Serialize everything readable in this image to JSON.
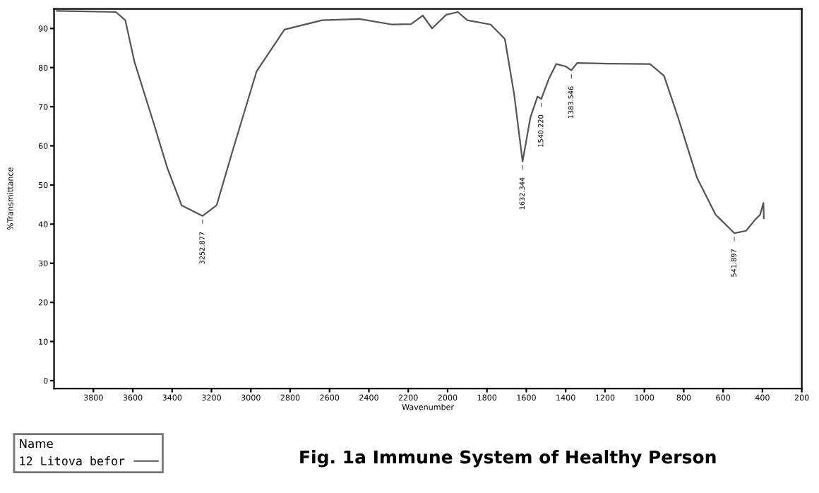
{
  "chart_data": {
    "type": "line",
    "title": "Fig. 1a Immune System of Healthy Person",
    "xlabel": "Wavenumber",
    "ylabel": "%Transmittance",
    "legend_title": "Name",
    "legend": "bottom left",
    "xlim": [
      4000,
      200
    ],
    "ylim": [
      -2,
      95
    ],
    "xticks": [
      3800,
      3600,
      3400,
      3200,
      3000,
      2800,
      2600,
      2400,
      2200,
      2000,
      1800,
      1600,
      1400,
      1200,
      1000,
      800,
      600,
      400,
      200
    ],
    "yticks": [
      0,
      10,
      20,
      30,
      40,
      50,
      60,
      70,
      80,
      90
    ],
    "grid": false,
    "marker": "none",
    "line_style": "solid",
    "series": [
      {
        "name": "12 Litova befor",
        "color": "#555555",
        "x": [
          3986,
          3686,
          3638,
          3591,
          3495,
          3424,
          3352,
          3245,
          3174,
          3091,
          2971,
          2829,
          2638,
          2448,
          2281,
          2186,
          2126,
          2079,
          2007,
          1948,
          1900,
          1781,
          1709,
          1662,
          1619,
          1579,
          1543,
          1524,
          1484,
          1448,
          1400,
          1371,
          1341,
          1186,
          971,
          900,
          829,
          733,
          638,
          543,
          483,
          436,
          412,
          395,
          393
        ],
        "values": [
          94.5,
          94.2,
          92.1,
          81.4,
          66,
          54.3,
          44.8,
          42.1,
          44.8,
          59,
          79,
          89.7,
          92.1,
          92.4,
          91,
          91.1,
          93.3,
          90,
          93.5,
          94.2,
          92.1,
          91,
          87.3,
          73.2,
          56,
          67.3,
          72.6,
          72,
          77.3,
          80.9,
          80.3,
          79.3,
          81.2,
          81,
          80.9,
          77.9,
          67.3,
          51.9,
          42.4,
          37.7,
          38.3,
          41.2,
          42.4,
          45.4,
          41.5
        ]
      }
    ],
    "annotations": [
      {
        "text": "3252.877",
        "x": 3245,
        "y": 42.1
      },
      {
        "text": "1632.344",
        "x": 1619,
        "y": 56
      },
      {
        "text": "1540.220",
        "x": 1524,
        "y": 72
      },
      {
        "text": "1383.546",
        "x": 1371,
        "y": 79.3
      },
      {
        "text": "541.897",
        "x": 543,
        "y": 37.7
      }
    ]
  }
}
